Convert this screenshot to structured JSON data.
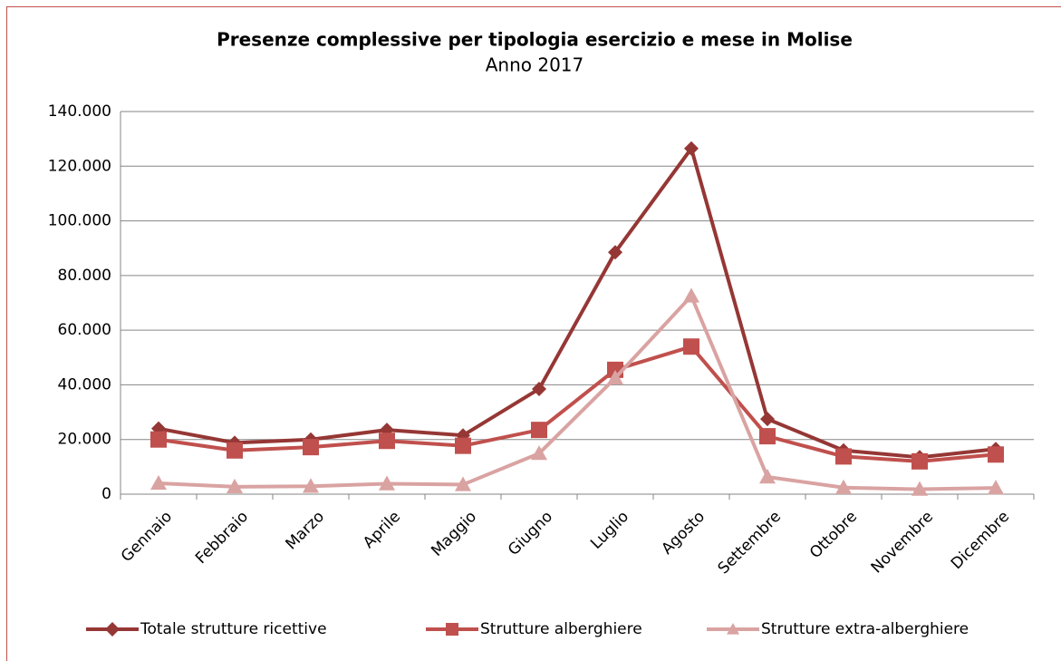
{
  "chart_data": {
    "type": "line",
    "title": "Presenze complessive per tipologia esercizio e mese in Molise",
    "subtitle": "Anno 2017",
    "categories": [
      "Gennaio",
      "Febbraio",
      "Marzo",
      "Aprile",
      "Maggio",
      "Giugno",
      "Luglio",
      "Agosto",
      "Settembre",
      "Ottobre",
      "Novembre",
      "Dicembre"
    ],
    "series": [
      {
        "name": "Totale strutture ricettive",
        "color": "#953735",
        "marker": "diamond",
        "values": [
          24000,
          18800,
          20000,
          23500,
          21500,
          38500,
          88500,
          126500,
          27500,
          16000,
          13500,
          16500
        ]
      },
      {
        "name": "Strutture alberghiere",
        "color": "#c0504d",
        "marker": "square",
        "values": [
          20000,
          16000,
          17200,
          19500,
          17700,
          23500,
          45500,
          54000,
          21200,
          13800,
          12000,
          14500
        ]
      },
      {
        "name": "Strutture extra-alberghiere",
        "color": "#d9a3a2",
        "marker": "triangle",
        "values": [
          4000,
          2700,
          2900,
          3800,
          3500,
          14900,
          42500,
          72500,
          6300,
          2400,
          1800,
          2300
        ]
      }
    ],
    "ylim": [
      0,
      140000
    ],
    "yticks": [
      0,
      {
        "value": 20000,
        "label": "20.000"
      },
      {
        "value": 40000,
        "label": "40.000"
      },
      {
        "value": 60000,
        "label": "60.000"
      },
      {
        "value": 80000,
        "label": "80.000"
      },
      {
        "value": 100000,
        "label": "100.000"
      },
      {
        "value": 120000,
        "label": "120.000"
      },
      {
        "value": 140000,
        "label": "140.000"
      }
    ],
    "grid": true,
    "legend": "bottom"
  }
}
